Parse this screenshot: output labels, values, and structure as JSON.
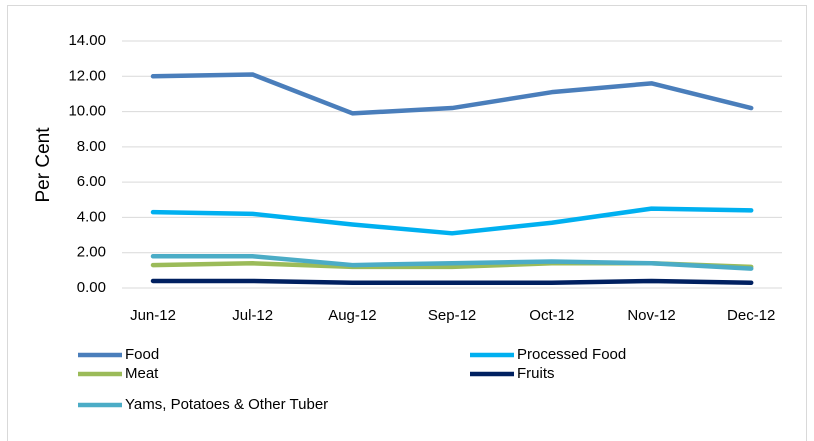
{
  "chart_data": {
    "type": "line",
    "y_label": "Per Cent",
    "categories": [
      "Jun-12",
      "Jul-12",
      "Aug-12",
      "Sep-12",
      "Oct-12",
      "Nov-12",
      "Dec-12"
    ],
    "series": [
      {
        "name": "Food",
        "color": "#4a7ebb",
        "values": [
          12.0,
          12.1,
          9.9,
          10.2,
          11.1,
          11.6,
          10.2
        ]
      },
      {
        "name": "Processed Food",
        "color": "#00b0f0",
        "values": [
          4.3,
          4.2,
          3.6,
          3.1,
          3.7,
          4.5,
          4.4
        ]
      },
      {
        "name": "Meat",
        "color": "#9bbb59",
        "values": [
          1.3,
          1.4,
          1.2,
          1.2,
          1.4,
          1.4,
          1.2
        ]
      },
      {
        "name": "Fruits",
        "color": "#002060",
        "values": [
          0.4,
          0.4,
          0.3,
          0.3,
          0.3,
          0.4,
          0.3
        ]
      },
      {
        "name": "Yams, Potatoes & Other Tuber",
        "color": "#4bacc6",
        "values": [
          1.8,
          1.8,
          1.3,
          1.4,
          1.5,
          1.4,
          1.1
        ]
      }
    ],
    "ylim": [
      0,
      14
    ],
    "yticks": [
      {
        "value": 0,
        "label": "0.00"
      },
      {
        "value": 2,
        "label": "2.00"
      },
      {
        "value": 4,
        "label": "4.00"
      },
      {
        "value": 6,
        "label": "6.00"
      },
      {
        "value": 8,
        "label": "8.00"
      },
      {
        "value": 10,
        "label": "10.00"
      },
      {
        "value": 12,
        "label": "12.00"
      },
      {
        "value": 14,
        "label": "14.00"
      }
    ],
    "grid": true,
    "legend": "bottom"
  }
}
